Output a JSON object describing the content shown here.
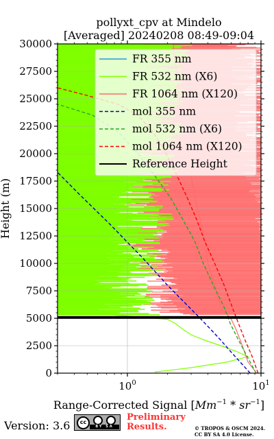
{
  "chart_data": {
    "type": "line",
    "title": "pollyxt_cpv at Mindelo",
    "subtitle": "[Averaged] 20240208 08:49-09:04",
    "xlabel_prefix": "Range-Corrected Signal [",
    "xlabel_unit": "Mm",
    "xlabel_unit_exp": "−1",
    "xlabel_mid": " * ",
    "xlabel_unit2": "sr",
    "xlabel_unit2_exp": "−1",
    "xlabel_suffix": "]",
    "ylabel": "Height (m)",
    "xscale": "log",
    "xlim": [
      0.3,
      10
    ],
    "ylim": [
      0,
      30000
    ],
    "x_ticks": [
      {
        "value": 1,
        "base": "10",
        "exp": "0"
      },
      {
        "value": 10,
        "base": "10",
        "exp": "1"
      }
    ],
    "y_ticks": [
      "0",
      "2500",
      "5000",
      "7500",
      "10000",
      "12500",
      "15000",
      "17500",
      "20000",
      "22500",
      "25000",
      "27500",
      "30000"
    ],
    "grid": true,
    "legend_position": "top-right",
    "series": [
      {
        "name": "FR 355 nm",
        "color": "#1f9bdc",
        "style": "solid",
        "points": []
      },
      {
        "name": "FR 532 nm (X6)",
        "color": "#7fff00",
        "style": "solid",
        "points": [
          [
            1.6,
            100
          ],
          [
            2.2,
            300
          ],
          [
            3.0,
            500
          ],
          [
            5.5,
            1000
          ],
          [
            8.0,
            1500
          ],
          [
            6.5,
            2000
          ],
          [
            5.0,
            2500
          ],
          [
            3.8,
            3000
          ],
          [
            3.0,
            3500
          ],
          [
            2.6,
            4000
          ],
          [
            2.3,
            4500
          ],
          [
            2.0,
            4900
          ],
          [
            0.5,
            5500
          ],
          [
            0.7,
            6500
          ],
          [
            0.6,
            8000
          ],
          [
            0.8,
            10000
          ],
          [
            0.7,
            12000
          ],
          [
            0.9,
            14000
          ],
          [
            0.8,
            16000
          ],
          [
            1.0,
            18000
          ],
          [
            0.9,
            20000
          ],
          [
            1.1,
            22000
          ],
          [
            1.0,
            24000
          ],
          [
            1.2,
            26000
          ],
          [
            1.1,
            28000
          ],
          [
            1.3,
            30000
          ]
        ]
      },
      {
        "name": "FR 1064 nm (X120)",
        "color": "#ff6b6b",
        "style": "solid",
        "points": [
          [
            9.0,
            200
          ],
          [
            8.5,
            600
          ],
          [
            8.0,
            1000
          ],
          [
            7.5,
            2000
          ],
          [
            7.0,
            3000
          ],
          [
            6.5,
            4000
          ],
          [
            6.0,
            4900
          ],
          [
            5.0,
            6000
          ],
          [
            4.5,
            8000
          ],
          [
            4.0,
            10000
          ],
          [
            3.8,
            12000
          ],
          [
            3.5,
            14000
          ],
          [
            3.2,
            16000
          ],
          [
            3.0,
            18000
          ],
          [
            2.8,
            20000
          ],
          [
            2.6,
            22000
          ],
          [
            2.5,
            24000
          ],
          [
            2.4,
            26000
          ],
          [
            2.3,
            28000
          ],
          [
            2.2,
            30000
          ]
        ]
      },
      {
        "name": "mol 355 nm",
        "color": "#0000cc",
        "style": "dashed",
        "points": [
          [
            8.3,
            0
          ],
          [
            7.0,
            1000
          ],
          [
            5.9,
            2000
          ],
          [
            5.0,
            3000
          ],
          [
            4.2,
            4000
          ],
          [
            3.5,
            5000
          ],
          [
            2.0,
            8000
          ],
          [
            1.3,
            10500
          ],
          [
            0.75,
            13500
          ],
          [
            0.42,
            16500
          ],
          [
            0.3,
            18300
          ]
        ]
      },
      {
        "name": "mol 532 nm (X6)",
        "color": "#22aa22",
        "style": "dashed",
        "points": [
          [
            9.2,
            0
          ],
          [
            7.9,
            1500
          ],
          [
            6.8,
            3000
          ],
          [
            5.9,
            4500
          ],
          [
            5.3,
            6000
          ],
          [
            4.4,
            8000
          ],
          [
            3.7,
            10000
          ],
          [
            3.2,
            12000
          ],
          [
            2.6,
            14000
          ],
          [
            2.1,
            16000
          ],
          [
            1.6,
            18000
          ],
          [
            1.2,
            20000
          ],
          [
            0.85,
            22000
          ],
          [
            0.55,
            23500
          ],
          [
            0.3,
            24500
          ]
        ]
      },
      {
        "name": "mol 1064 nm (X120)",
        "color": "#ff0000",
        "style": "dashed",
        "points": [
          [
            9.5,
            0
          ],
          [
            8.6,
            1500
          ],
          [
            7.6,
            3000
          ],
          [
            6.8,
            4500
          ],
          [
            6.1,
            6000
          ],
          [
            5.3,
            8000
          ],
          [
            4.5,
            10000
          ],
          [
            3.8,
            12000
          ],
          [
            3.3,
            14000
          ],
          [
            2.8,
            16000
          ],
          [
            2.35,
            18000
          ],
          [
            1.95,
            20000
          ],
          [
            1.55,
            22000
          ],
          [
            1.2,
            23500
          ],
          [
            0.85,
            24500
          ],
          [
            0.5,
            25300
          ],
          [
            0.3,
            26000
          ]
        ]
      },
      {
        "name": "Reference Height",
        "color": "#000000",
        "style": "solid",
        "y_range": [
          4950,
          5200
        ]
      }
    ]
  },
  "footer": {
    "version": "Version: 3.6",
    "preliminary_line1": "Preliminary",
    "preliminary_line2": "Results.",
    "copyright_line1": "© TROPOS & OSCM 2024.",
    "copyright_line2": "CC BY SA 4.0 License.",
    "cc_badge_label": "BY SA"
  }
}
